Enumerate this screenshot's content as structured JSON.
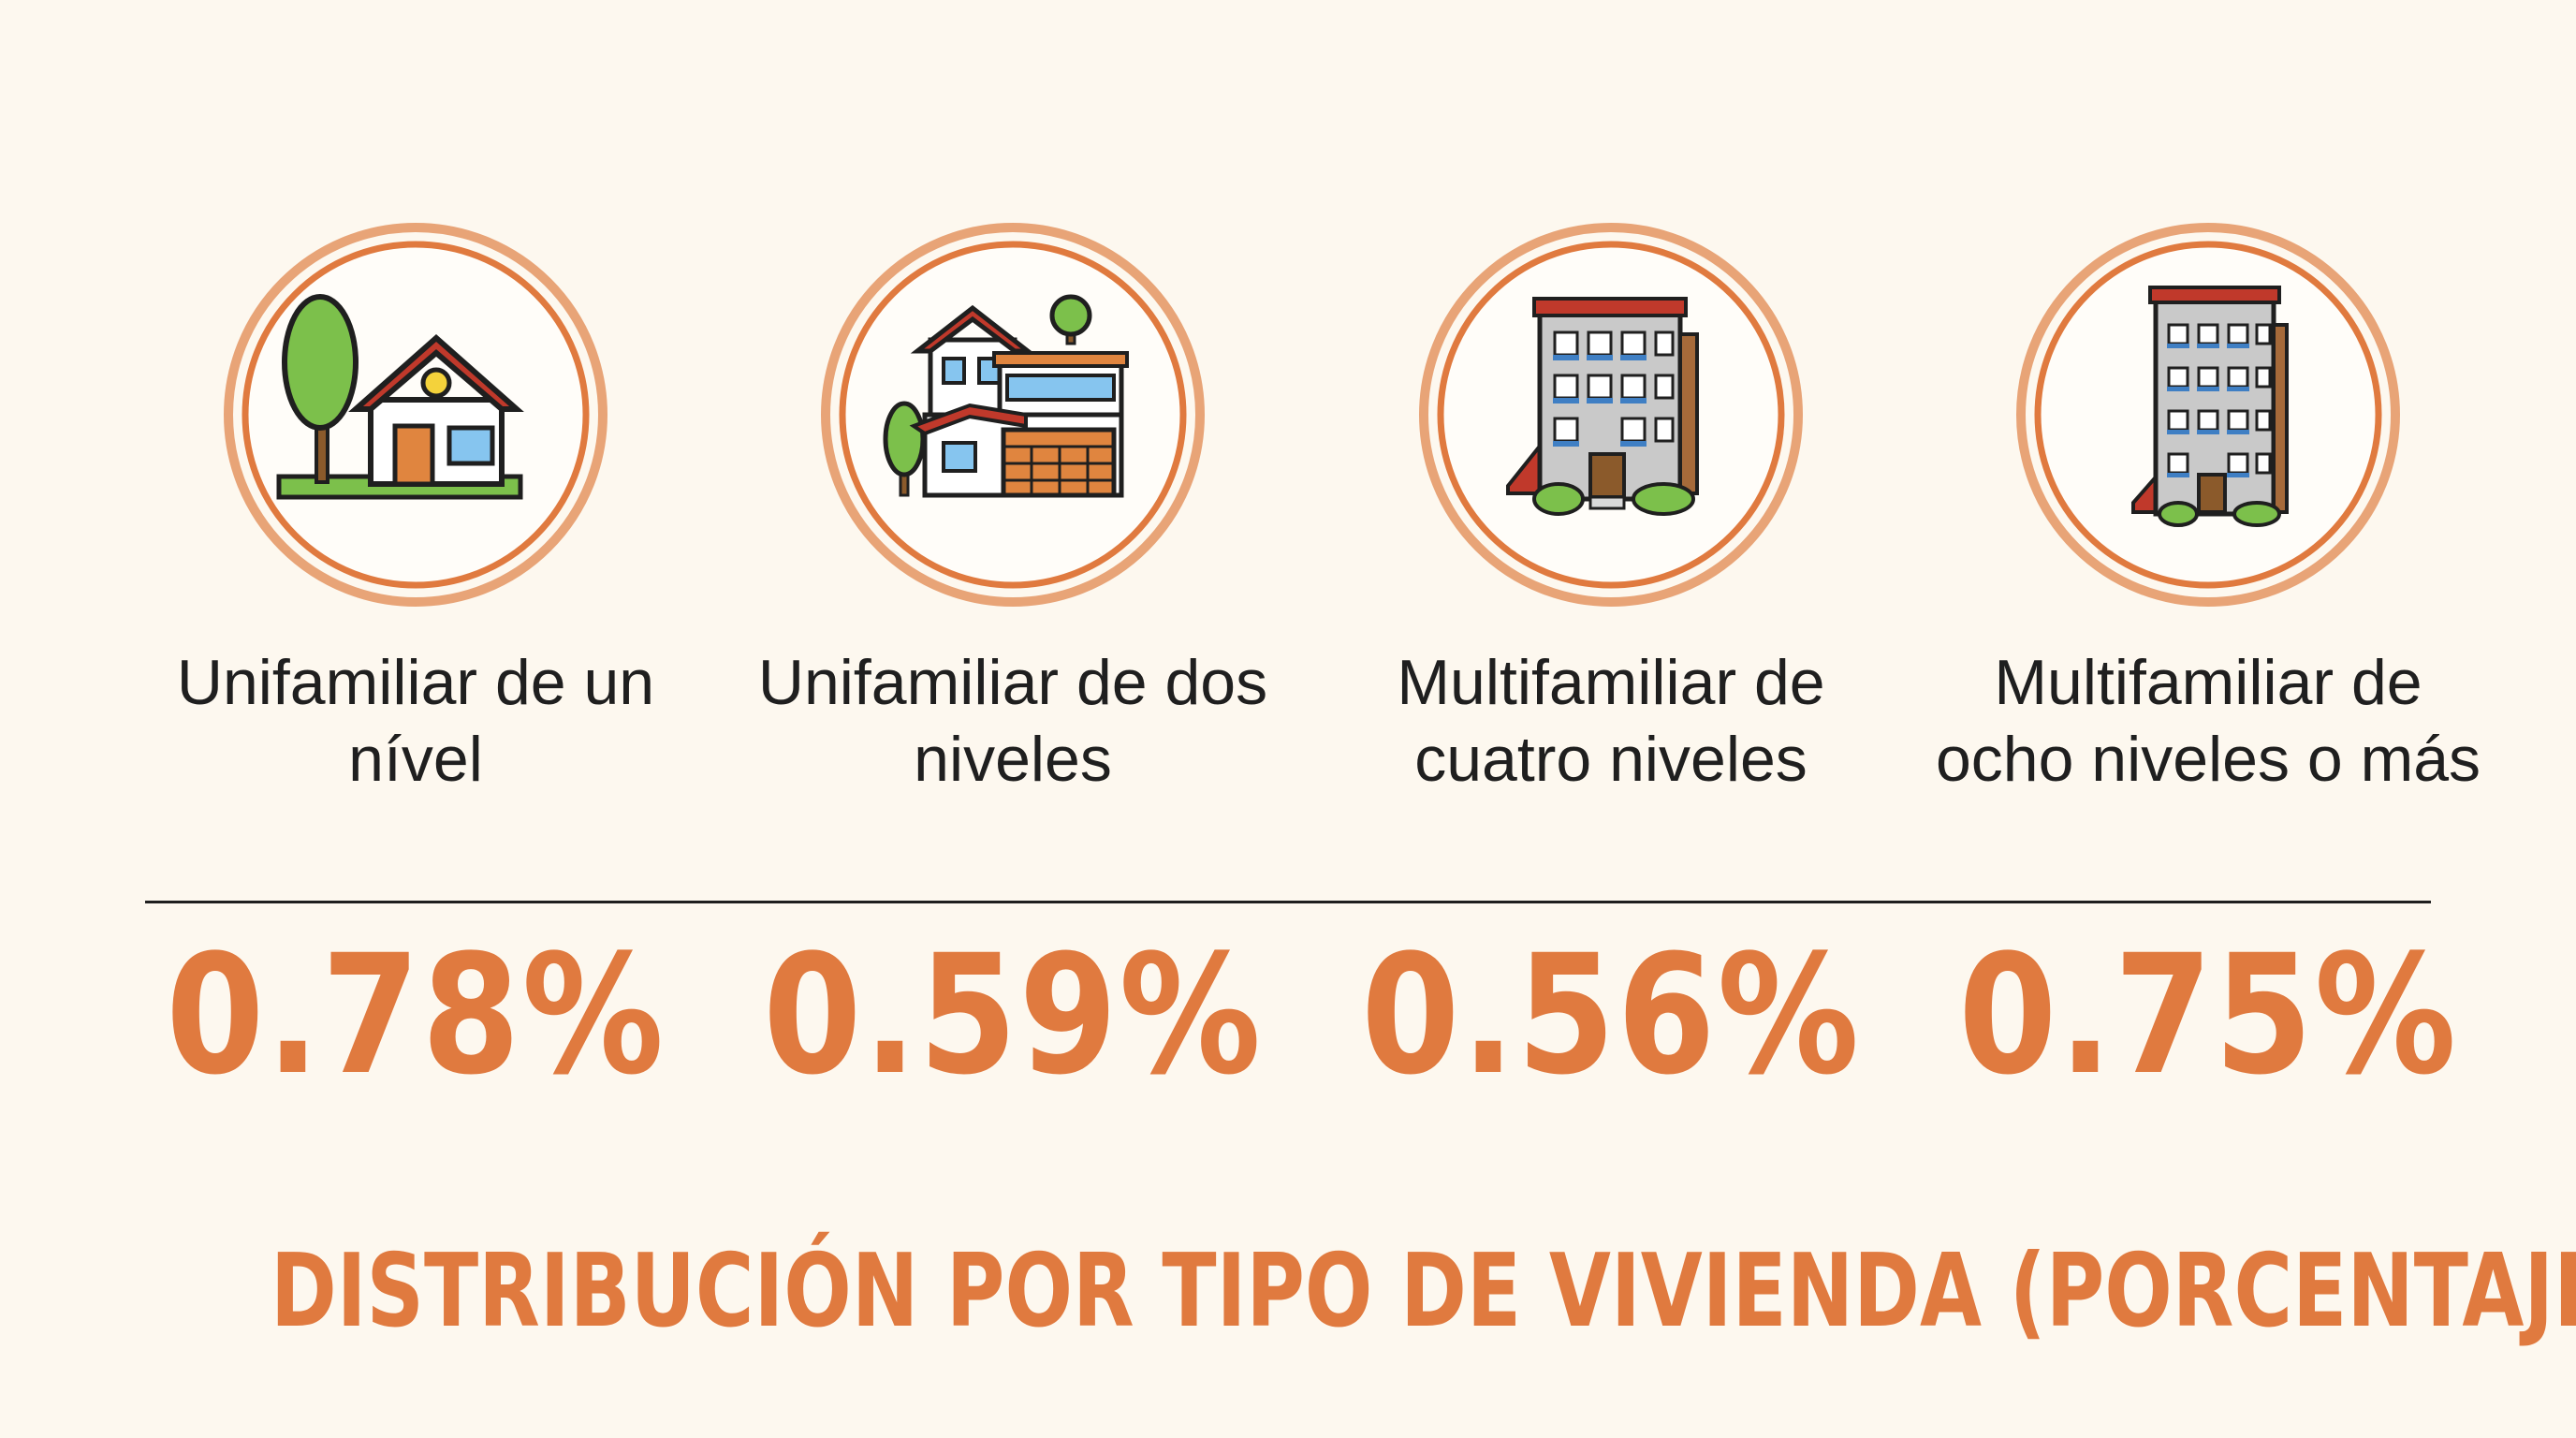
{
  "items": [
    {
      "label": "Unifamiliar de un nível",
      "value": "0.78%",
      "icon": "single-level-house-icon"
    },
    {
      "label": "Unifamiliar de dos niveles",
      "value": "0.59%",
      "icon": "two-level-house-icon"
    },
    {
      "label": "Multifamiliar de cuatro niveles",
      "value": "0.56%",
      "icon": "four-level-building-icon"
    },
    {
      "label": "Multifamiliar de ocho niveles o más",
      "value": "0.75%",
      "icon": "eight-level-building-icon"
    }
  ],
  "title": "DISTRIBUCIÓN POR TIPO DE VIVIENDA (PORCENTAJE)",
  "colors": {
    "accent": "#e07a3f",
    "ring_outer": "#e8a477",
    "background": "#fdf8ef",
    "text": "#1f1f1f"
  }
}
